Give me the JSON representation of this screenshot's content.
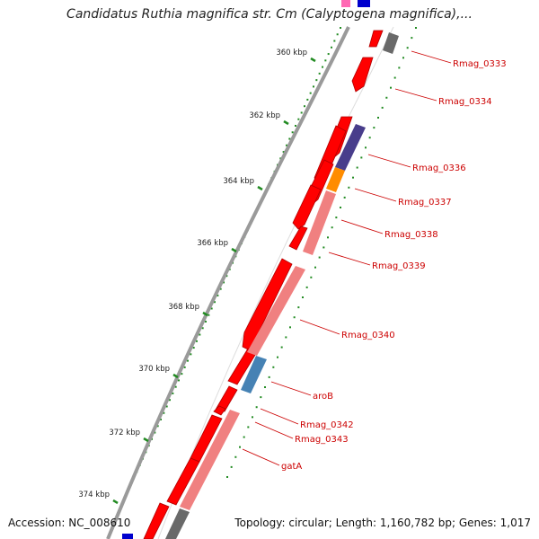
{
  "title": "Candidatus Ruthia magnifica str. Cm (Calyptogena magnifica),...",
  "accession": "Accession: NC_008610",
  "topology": "Topology: circular; Length: 1,160,782 bp; Genes: 1,017",
  "ticks": [
    {
      "label": "360 kbp"
    },
    {
      "label": "362 kbp"
    },
    {
      "label": "364 kbp"
    },
    {
      "label": "366 kbp"
    },
    {
      "label": "368 kbp"
    },
    {
      "label": "370 kbp"
    },
    {
      "label": "372 kbp"
    },
    {
      "label": "374 kbp"
    }
  ],
  "gene_labels": [
    {
      "text": "Rmag_0333"
    },
    {
      "text": "Rmag_0334"
    },
    {
      "text": "Rmag_0336"
    },
    {
      "text": "Rmag_0337"
    },
    {
      "text": "Rmag_0338"
    },
    {
      "text": "Rmag_0339"
    },
    {
      "text": "Rmag_0340"
    },
    {
      "text": "aroB"
    },
    {
      "text": "Rmag_0342"
    },
    {
      "text": "Rmag_0343"
    },
    {
      "text": "gatA"
    }
  ],
  "colors": {
    "gene_red": "#ff0000",
    "gene_dark_red": "#b00000",
    "cog_pink": "#f08080",
    "cog_purple": "#483d8b",
    "cog_orange": "#ff8c00",
    "cog_blue": "#4682b4",
    "cog_gray": "#696969",
    "label_red": "#cc0000",
    "tick_green": "#228b22"
  }
}
